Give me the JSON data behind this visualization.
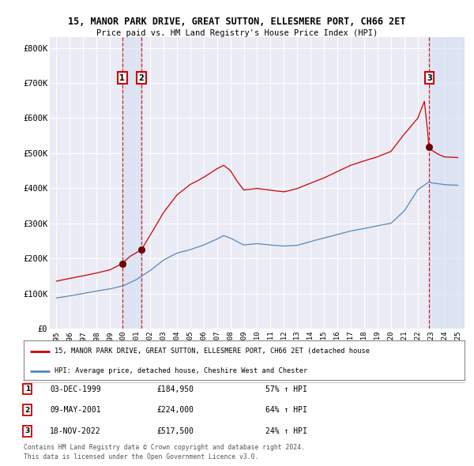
{
  "title1": "15, MANOR PARK DRIVE, GREAT SUTTON, ELLESMERE PORT, CH66 2ET",
  "title2": "Price paid vs. HM Land Registry's House Price Index (HPI)",
  "red_label": "15, MANOR PARK DRIVE, GREAT SUTTON, ELLESMERE PORT, CH66 2ET (detached house",
  "blue_label": "HPI: Average price, detached house, Cheshire West and Chester",
  "transactions": [
    {
      "num": 1,
      "date": "03-DEC-1999",
      "price": 184950,
      "pct": "57% ↑ HPI",
      "year_x": 1999.92
    },
    {
      "num": 2,
      "date": "09-MAY-2001",
      "price": 224000,
      "pct": "64% ↑ HPI",
      "year_x": 2001.35
    },
    {
      "num": 3,
      "date": "18-NOV-2022",
      "price": 517500,
      "pct": "24% ↑ HPI",
      "year_x": 2022.87
    }
  ],
  "footer1": "Contains HM Land Registry data © Crown copyright and database right 2024.",
  "footer2": "This data is licensed under the Open Government Licence v3.0.",
  "ylim": [
    0,
    830000
  ],
  "yticks": [
    0,
    100000,
    200000,
    300000,
    400000,
    500000,
    600000,
    700000,
    800000
  ],
  "ytick_labels": [
    "£0",
    "£100K",
    "£200K",
    "£300K",
    "£400K",
    "£500K",
    "£600K",
    "£700K",
    "£800K"
  ],
  "xlim_start": 1994.5,
  "xlim_end": 2025.5,
  "bg_color": "#ffffff",
  "plot_bg_color": "#ebebf5",
  "grid_color": "#ffffff",
  "red_color": "#cc0000",
  "blue_color": "#5588bb",
  "shade_color": "#d0ddf0",
  "transaction_box_color": "#cc0000",
  "blue_anchor_points": [
    [
      1995.0,
      87000
    ],
    [
      1996.0,
      93000
    ],
    [
      1997.0,
      100000
    ],
    [
      1998.0,
      107000
    ],
    [
      1999.0,
      113000
    ],
    [
      2000.0,
      122000
    ],
    [
      2001.0,
      140000
    ],
    [
      2002.0,
      165000
    ],
    [
      2003.0,
      195000
    ],
    [
      2004.0,
      215000
    ],
    [
      2005.0,
      225000
    ],
    [
      2006.0,
      238000
    ],
    [
      2007.0,
      255000
    ],
    [
      2007.5,
      265000
    ],
    [
      2008.0,
      258000
    ],
    [
      2009.0,
      238000
    ],
    [
      2010.0,
      242000
    ],
    [
      2011.0,
      238000
    ],
    [
      2012.0,
      235000
    ],
    [
      2013.0,
      237000
    ],
    [
      2014.0,
      248000
    ],
    [
      2015.0,
      258000
    ],
    [
      2016.0,
      268000
    ],
    [
      2017.0,
      278000
    ],
    [
      2018.0,
      285000
    ],
    [
      2019.0,
      293000
    ],
    [
      2020.0,
      300000
    ],
    [
      2021.0,
      335000
    ],
    [
      2022.0,
      395000
    ],
    [
      2022.87,
      418000
    ],
    [
      2023.0,
      415000
    ],
    [
      2024.0,
      410000
    ],
    [
      2025.0,
      408000
    ]
  ],
  "red_anchor_points": [
    [
      1995.0,
      135000
    ],
    [
      1996.0,
      143000
    ],
    [
      1997.0,
      150000
    ],
    [
      1998.0,
      158000
    ],
    [
      1999.0,
      167000
    ],
    [
      1999.92,
      184950
    ],
    [
      2000.5,
      205000
    ],
    [
      2001.35,
      224000
    ],
    [
      2002.0,
      265000
    ],
    [
      2003.0,
      330000
    ],
    [
      2004.0,
      380000
    ],
    [
      2005.0,
      410000
    ],
    [
      2006.0,
      430000
    ],
    [
      2007.0,
      455000
    ],
    [
      2007.5,
      465000
    ],
    [
      2008.0,
      450000
    ],
    [
      2008.5,
      420000
    ],
    [
      2009.0,
      395000
    ],
    [
      2010.0,
      400000
    ],
    [
      2011.0,
      395000
    ],
    [
      2012.0,
      390000
    ],
    [
      2013.0,
      400000
    ],
    [
      2014.0,
      415000
    ],
    [
      2015.0,
      430000
    ],
    [
      2016.0,
      448000
    ],
    [
      2017.0,
      465000
    ],
    [
      2018.0,
      478000
    ],
    [
      2019.0,
      490000
    ],
    [
      2020.0,
      505000
    ],
    [
      2021.0,
      555000
    ],
    [
      2022.0,
      600000
    ],
    [
      2022.5,
      648000
    ],
    [
      2022.87,
      517500
    ],
    [
      2023.0,
      510000
    ],
    [
      2023.5,
      498000
    ],
    [
      2024.0,
      490000
    ],
    [
      2025.0,
      488000
    ]
  ]
}
